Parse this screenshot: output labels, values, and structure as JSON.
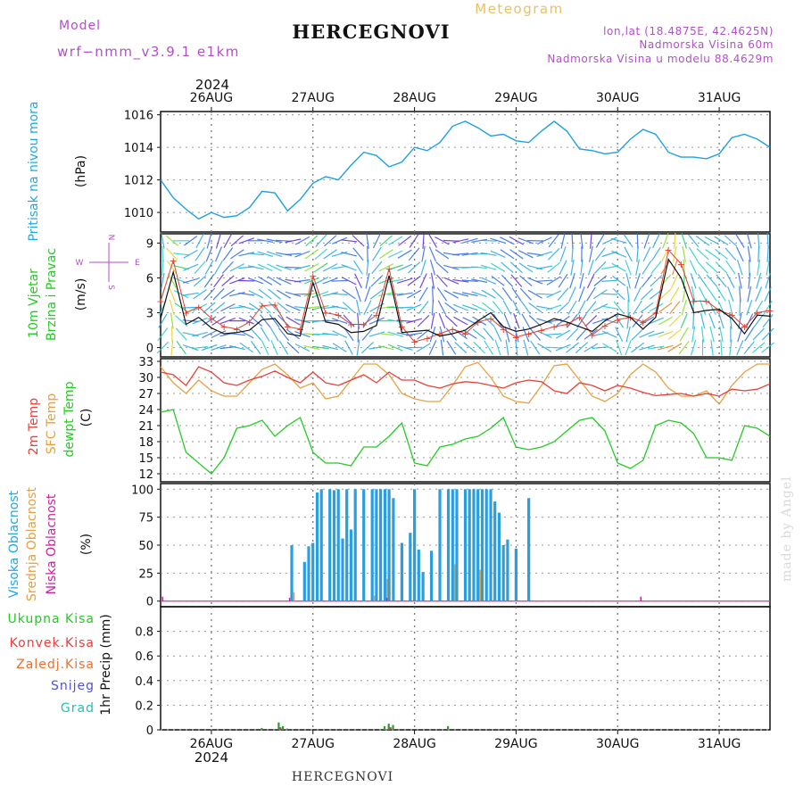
{
  "header": {
    "model_label": "Model",
    "model_name": "wrf−nmm_v3.9.1  e1km",
    "title": "HERCEGNOVI",
    "subtitle": "Meteogram",
    "coords": "lon,lat (18.4875E, 42.4625N)",
    "altitude": "Nadmorska Visina 60m",
    "model_altitude": "Nadmorska Visina u modelu 88.4629m",
    "footer_title": "HERCEGNOVI",
    "credit": "made by Angel"
  },
  "time_axis": {
    "year": "2024",
    "days": [
      "26AUG",
      "27AUG",
      "28AUG",
      "29AUG",
      "30AUG",
      "31AUG"
    ],
    "start_hour": 12,
    "end_hour": 156,
    "day_hours": [
      24,
      48,
      72,
      96,
      120,
      144
    ]
  },
  "wind_compass": {
    "n": "N",
    "s": "S",
    "e": "E",
    "w": "W"
  },
  "colors": {
    "pressure": "#1ea0e6",
    "temp2m": "#e8403a",
    "sfc_temp": "#e8a040",
    "dewpoint": "#22cc22",
    "high_cloud": "#2a9ee0",
    "mid_cloud": "#e0a030",
    "low_cloud": "#d020a0",
    "total_precip": "#2e9e2e",
    "conv_precip": "#e03030",
    "frozen_precip": "#e07020",
    "snow": "#5050e0",
    "graupel": "#20c0c0",
    "label_cyan": "#22a8e0",
    "label_purple": "#b050c8"
  },
  "chart_data": [
    {
      "type": "line",
      "panel": "pressure",
      "ylabel_main": "Pritisak na nivou mora",
      "unit": "(hPa)",
      "ylim": [
        1008.8,
        1016.2
      ],
      "yticks": [
        1010,
        1012,
        1014,
        1016
      ],
      "series": [
        {
          "x": [
            12,
            15,
            18,
            21,
            24,
            27,
            30,
            33,
            36,
            39,
            42,
            45,
            48,
            51,
            54,
            57,
            60,
            63,
            66,
            69,
            72,
            75,
            78,
            81,
            84,
            87,
            90,
            93,
            96,
            99,
            102,
            105,
            108,
            111,
            114,
            117,
            120,
            123,
            126,
            129,
            132,
            135,
            138,
            141,
            144,
            147,
            150,
            153,
            156
          ],
          "values": [
            1012.0,
            1010.9,
            1010.2,
            1009.6,
            1010.0,
            1009.7,
            1009.8,
            1010.3,
            1011.3,
            1011.2,
            1010.1,
            1010.8,
            1011.8,
            1012.2,
            1012.0,
            1012.9,
            1013.7,
            1013.5,
            1012.8,
            1013.1,
            1014.0,
            1013.8,
            1014.3,
            1015.3,
            1015.6,
            1015.2,
            1014.7,
            1014.8,
            1014.4,
            1014.3,
            1015.0,
            1015.6,
            1015.0,
            1013.9,
            1013.8,
            1013.6,
            1013.7,
            1014.5,
            1015.1,
            1014.8,
            1013.7,
            1013.4,
            1013.4,
            1013.3,
            1013.6,
            1014.6,
            1014.8,
            1014.5,
            1014.0
          ]
        }
      ]
    },
    {
      "type": "line",
      "panel": "wind",
      "ylabel_lines": [
        "10m Vjetar",
        "Brzina i Pravac"
      ],
      "unit": "(m/s)",
      "ylim": [
        -0.8,
        9.8
      ],
      "yticks": [
        0,
        3,
        6,
        9
      ],
      "series": [
        {
          "name": "speed",
          "x": [
            12,
            15,
            18,
            21,
            24,
            27,
            30,
            33,
            36,
            39,
            42,
            45,
            48,
            51,
            54,
            57,
            60,
            63,
            66,
            69,
            72,
            75,
            78,
            81,
            84,
            87,
            90,
            93,
            96,
            99,
            102,
            105,
            108,
            111,
            114,
            117,
            120,
            123,
            126,
            129,
            132,
            135,
            138,
            141,
            144,
            147,
            150,
            153,
            156
          ],
          "values": [
            2.5,
            6.5,
            2.0,
            2.6,
            1.7,
            1.2,
            1.3,
            1.5,
            2.4,
            2.5,
            1.2,
            1.0,
            5.6,
            2.2,
            2.0,
            1.3,
            1.4,
            1.9,
            6.2,
            1.3,
            1.4,
            1.5,
            1.0,
            1.2,
            1.5,
            2.3,
            3.0,
            1.8,
            1.4,
            1.6,
            2.0,
            2.5,
            2.2,
            1.8,
            1.4,
            2.3,
            2.9,
            2.6,
            1.6,
            2.6,
            7.6,
            6.0,
            3.0,
            3.2,
            3.3,
            2.5,
            1.2,
            2.8,
            2.7
          ]
        },
        {
          "name": "gust",
          "x": [
            12,
            15,
            18,
            21,
            24,
            27,
            30,
            33,
            36,
            39,
            42,
            45,
            48,
            51,
            54,
            57,
            60,
            63,
            66,
            69,
            72,
            75,
            78,
            81,
            84,
            87,
            90,
            93,
            96,
            99,
            102,
            105,
            108,
            111,
            114,
            117,
            120,
            123,
            126,
            129,
            132,
            135,
            138,
            141,
            144,
            147,
            150,
            153,
            156
          ],
          "values": [
            4.0,
            7.5,
            3.0,
            3.5,
            2.5,
            1.8,
            1.6,
            2.2,
            3.6,
            3.7,
            1.8,
            1.6,
            6.2,
            3.0,
            2.8,
            2.0,
            2.0,
            2.8,
            6.8,
            1.8,
            0.5,
            0.8,
            1.2,
            1.6,
            1.2,
            2.2,
            2.5,
            1.6,
            0.9,
            1.2,
            1.5,
            1.8,
            2.0,
            2.6,
            1.1,
            1.9,
            2.4,
            2.6,
            2.2,
            3.0,
            8.4,
            7.2,
            4.0,
            4.0,
            3.2,
            2.8,
            1.8,
            3.0,
            3.2
          ]
        }
      ]
    },
    {
      "type": "line",
      "panel": "temperature",
      "ylabel_lines": [
        "2m Temp",
        "SFC Temp",
        "dewpt Temp"
      ],
      "unit": "(C)",
      "ylim": [
        10.5,
        33.5
      ],
      "yticks": [
        12,
        15,
        18,
        21,
        24,
        27,
        30,
        33
      ],
      "series": [
        {
          "name": "2m Temp",
          "x": [
            12,
            15,
            18,
            21,
            24,
            27,
            30,
            33,
            36,
            39,
            42,
            45,
            48,
            51,
            54,
            57,
            60,
            63,
            66,
            69,
            72,
            75,
            78,
            81,
            84,
            87,
            90,
            93,
            96,
            99,
            102,
            105,
            108,
            111,
            114,
            117,
            120,
            123,
            126,
            129,
            132,
            135,
            138,
            141,
            144,
            147,
            150,
            153,
            156
          ],
          "values": [
            31.0,
            30.5,
            28.5,
            32.0,
            31.0,
            29.0,
            28.5,
            29.5,
            30.2,
            31.2,
            30.0,
            29.0,
            31.0,
            29.0,
            28.5,
            29.5,
            30.5,
            29.0,
            31.0,
            29.5,
            29.5,
            28.5,
            28.0,
            28.8,
            29.2,
            29.0,
            28.5,
            28.0,
            29.0,
            29.5,
            29.2,
            27.5,
            27.0,
            29.0,
            28.5,
            27.5,
            28.5,
            28.0,
            27.2,
            26.6,
            26.8,
            27.0,
            26.5,
            27.0,
            26.5,
            27.8,
            27.5,
            27.8,
            28.8
          ]
        },
        {
          "name": "SFC Temp",
          "x": [
            12,
            15,
            18,
            21,
            24,
            27,
            30,
            33,
            36,
            39,
            42,
            45,
            48,
            51,
            54,
            57,
            60,
            63,
            66,
            69,
            72,
            75,
            78,
            81,
            84,
            87,
            90,
            93,
            96,
            99,
            102,
            105,
            108,
            111,
            114,
            117,
            120,
            123,
            126,
            129,
            132,
            135,
            138,
            141,
            144,
            147,
            150,
            153,
            156
          ],
          "values": [
            32.0,
            29.0,
            27.0,
            29.5,
            27.5,
            26.5,
            26.5,
            29.0,
            31.5,
            32.5,
            30.5,
            28.0,
            29.0,
            26.0,
            26.5,
            29.5,
            32.5,
            32.5,
            30.5,
            27.0,
            26.0,
            25.5,
            25.5,
            28.5,
            32.0,
            32.8,
            30.0,
            26.5,
            25.5,
            25.2,
            28.5,
            32.2,
            32.5,
            29.5,
            26.5,
            25.5,
            27.0,
            30.5,
            32.5,
            31.0,
            28.0,
            26.5,
            26.5,
            27.5,
            25.0,
            28.5,
            31.0,
            32.5,
            32.5
          ]
        },
        {
          "name": "dewpt Temp",
          "x": [
            12,
            15,
            18,
            21,
            24,
            27,
            30,
            33,
            36,
            39,
            42,
            45,
            48,
            51,
            54,
            57,
            60,
            63,
            66,
            69,
            72,
            75,
            78,
            81,
            84,
            87,
            90,
            93,
            96,
            99,
            102,
            105,
            108,
            111,
            114,
            117,
            120,
            123,
            126,
            129,
            132,
            135,
            138,
            141,
            144,
            147,
            150,
            153,
            156
          ],
          "values": [
            23.5,
            24.0,
            16.0,
            14.0,
            12.0,
            15.0,
            20.5,
            21.0,
            22.0,
            19.0,
            21.0,
            22.5,
            16.0,
            14.0,
            14.0,
            13.5,
            17.0,
            17.0,
            19.0,
            21.5,
            14.0,
            13.5,
            17.0,
            17.5,
            18.5,
            19.0,
            20.5,
            22.5,
            17.0,
            16.5,
            17.0,
            18.0,
            20.0,
            22.0,
            22.5,
            20.0,
            14.0,
            13.0,
            14.5,
            21.0,
            22.0,
            21.5,
            19.5,
            15.0,
            15.0,
            14.5,
            21.0,
            20.5,
            19.0
          ]
        }
      ]
    },
    {
      "type": "bar",
      "panel": "clouds",
      "ylabel_lines": [
        "Visoka Oblacnost",
        "Srednja Oblacnost",
        "Niska Oblacnost"
      ],
      "unit": "(%)",
      "ylim": [
        -5,
        105
      ],
      "yticks": [
        0,
        25,
        50,
        75,
        100
      ],
      "series": [
        {
          "name": "Visoka Oblacnost",
          "x": [
            43,
            46,
            47,
            48,
            49,
            50,
            52,
            53,
            54,
            55,
            56,
            57,
            58,
            60,
            62,
            63,
            64,
            65,
            66,
            67,
            69,
            71,
            72,
            73,
            74,
            76,
            78,
            80,
            81,
            82,
            84,
            85,
            86,
            87,
            88,
            89,
            90,
            91,
            92,
            93,
            94,
            96,
            99
          ],
          "values": [
            50,
            35,
            49,
            52,
            97,
            100,
            100,
            99,
            100,
            56,
            100,
            64,
            100,
            100,
            100,
            100,
            100,
            100,
            100,
            92,
            52,
            61,
            100,
            46,
            26,
            45,
            100,
            100,
            100,
            100,
            100,
            100,
            100,
            100,
            100,
            100,
            100,
            89,
            79,
            50,
            55,
            47,
            92
          ]
        },
        {
          "name": "Srednja Oblacnost",
          "x": [
            43,
            62,
            65,
            81,
            87
          ],
          "values": [
            8,
            5,
            20,
            33,
            28
          ]
        },
        {
          "name": "Niska Oblacnost",
          "x": [
            13,
            43,
            66,
            126
          ],
          "values": [
            4,
            3,
            3,
            4
          ]
        }
      ]
    },
    {
      "type": "bar",
      "panel": "precip",
      "ylabel_lines": [
        "Ukupna Kisa",
        "Konvek.Kisa",
        "Zaledj.Kisa",
        "Snijeg",
        "Grad"
      ],
      "unit": "1hr Precip (mm)",
      "ylim": [
        0,
        1.0
      ],
      "yticks": [
        0,
        0.2,
        0.4,
        0.6,
        0.8
      ],
      "series": [
        {
          "name": "Ukupna Kisa",
          "x": [
            36,
            40,
            41,
            42,
            65,
            66,
            67,
            80
          ],
          "values": [
            0.015,
            0.06,
            0.03,
            0.01,
            0.03,
            0.05,
            0.04,
            0.03
          ]
        },
        {
          "name": "Konvek.Kisa",
          "x": [
            40,
            66
          ],
          "values": [
            0.02,
            0.02
          ]
        }
      ]
    }
  ]
}
